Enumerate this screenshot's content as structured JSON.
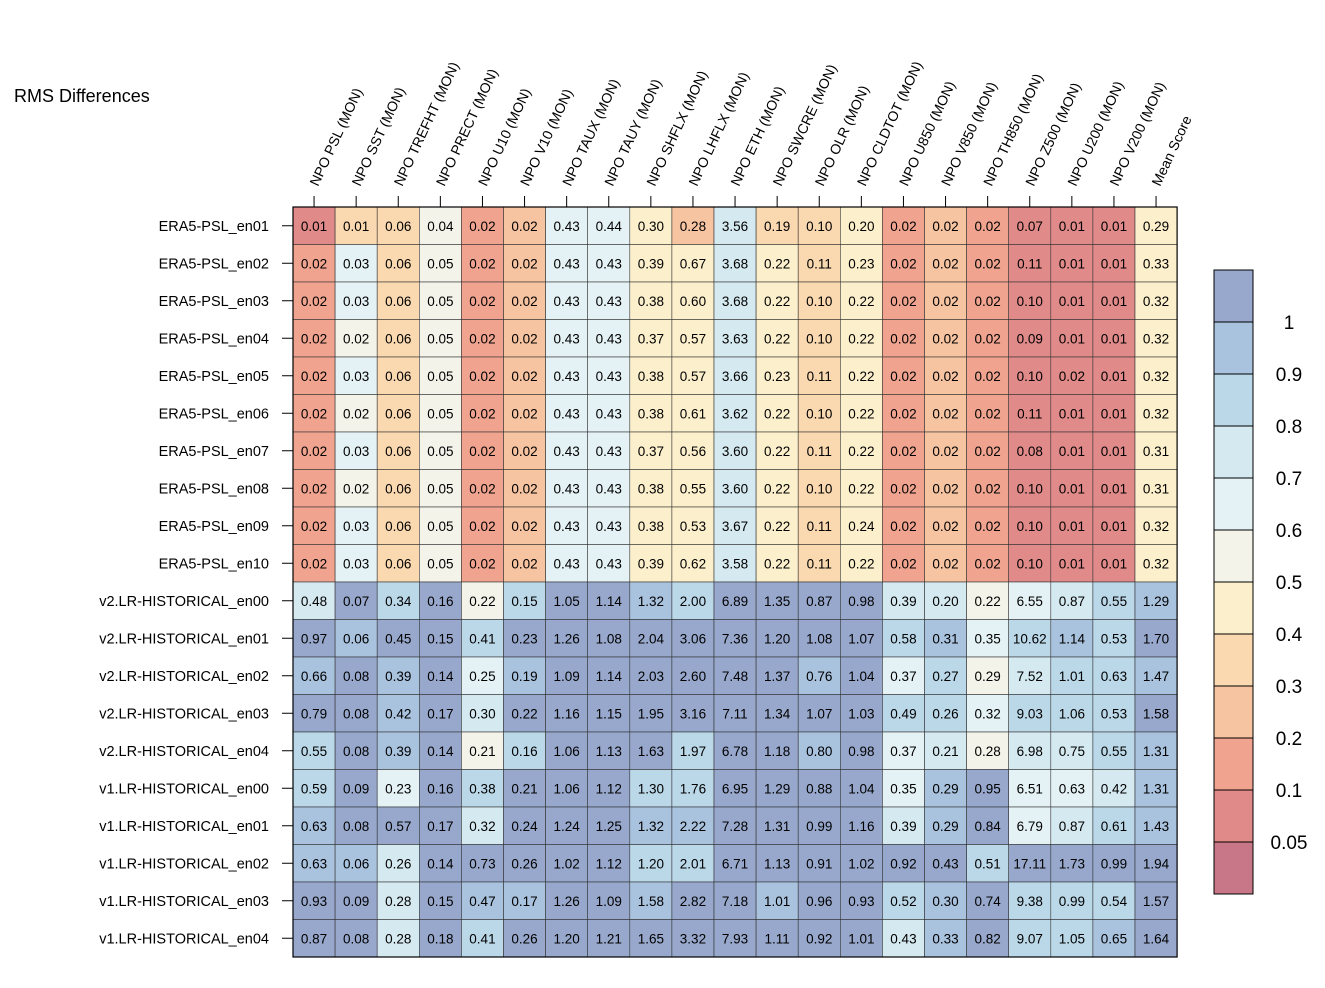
{
  "chart_data": {
    "type": "heatmap",
    "title": "RMS Differences",
    "columns": [
      "NPO PSL (MON)",
      "NPO SST (MON)",
      "NPO TREFHT (MON)",
      "NPO PRECT (MON)",
      "NPO U10 (MON)",
      "NPO V10 (MON)",
      "NPO TAUX (MON)",
      "NPO TAUY (MON)",
      "NPO SHFLX (MON)",
      "NPO LHFLX (MON)",
      "NPO ETH (MON)",
      "NPO SWCRE (MON)",
      "NPO OLR (MON)",
      "NPO CLDTOT (MON)",
      "NPO U850 (MON)",
      "NPO V850 (MON)",
      "NPO TH850 (MON)",
      "NPO Z500 (MON)",
      "NPO U200 (MON)",
      "NPO V200 (MON)",
      "Mean Score"
    ],
    "rows": [
      "ERA5-PSL_en01",
      "ERA5-PSL_en02",
      "ERA5-PSL_en03",
      "ERA5-PSL_en04",
      "ERA5-PSL_en05",
      "ERA5-PSL_en06",
      "ERA5-PSL_en07",
      "ERA5-PSL_en08",
      "ERA5-PSL_en09",
      "ERA5-PSL_en10",
      "v2.LR-HISTORICAL_en00",
      "v2.LR-HISTORICAL_en01",
      "v2.LR-HISTORICAL_en02",
      "v2.LR-HISTORICAL_en03",
      "v2.LR-HISTORICAL_en04",
      "v1.LR-HISTORICAL_en00",
      "v1.LR-HISTORICAL_en01",
      "v1.LR-HISTORICAL_en02",
      "v1.LR-HISTORICAL_en03",
      "v1.LR-HISTORICAL_en04"
    ],
    "values": [
      [
        "0.01",
        "0.01",
        "0.06",
        "0.04",
        "0.02",
        "0.02",
        "0.43",
        "0.44",
        "0.30",
        "0.28",
        "3.56",
        "0.19",
        "0.10",
        "0.20",
        "0.02",
        "0.02",
        "0.02",
        "0.07",
        "0.01",
        "0.01",
        "0.29"
      ],
      [
        "0.02",
        "0.03",
        "0.06",
        "0.05",
        "0.02",
        "0.02",
        "0.43",
        "0.43",
        "0.39",
        "0.67",
        "3.68",
        "0.22",
        "0.11",
        "0.23",
        "0.02",
        "0.02",
        "0.02",
        "0.11",
        "0.01",
        "0.01",
        "0.33"
      ],
      [
        "0.02",
        "0.03",
        "0.06",
        "0.05",
        "0.02",
        "0.02",
        "0.43",
        "0.43",
        "0.38",
        "0.60",
        "3.68",
        "0.22",
        "0.10",
        "0.22",
        "0.02",
        "0.02",
        "0.02",
        "0.10",
        "0.01",
        "0.01",
        "0.32"
      ],
      [
        "0.02",
        "0.02",
        "0.06",
        "0.05",
        "0.02",
        "0.02",
        "0.43",
        "0.43",
        "0.37",
        "0.57",
        "3.63",
        "0.22",
        "0.10",
        "0.22",
        "0.02",
        "0.02",
        "0.02",
        "0.09",
        "0.01",
        "0.01",
        "0.32"
      ],
      [
        "0.02",
        "0.03",
        "0.06",
        "0.05",
        "0.02",
        "0.02",
        "0.43",
        "0.43",
        "0.38",
        "0.57",
        "3.66",
        "0.23",
        "0.11",
        "0.22",
        "0.02",
        "0.02",
        "0.02",
        "0.10",
        "0.02",
        "0.01",
        "0.32"
      ],
      [
        "0.02",
        "0.02",
        "0.06",
        "0.05",
        "0.02",
        "0.02",
        "0.43",
        "0.43",
        "0.38",
        "0.61",
        "3.62",
        "0.22",
        "0.10",
        "0.22",
        "0.02",
        "0.02",
        "0.02",
        "0.11",
        "0.01",
        "0.01",
        "0.32"
      ],
      [
        "0.02",
        "0.03",
        "0.06",
        "0.05",
        "0.02",
        "0.02",
        "0.43",
        "0.43",
        "0.37",
        "0.56",
        "3.60",
        "0.22",
        "0.11",
        "0.22",
        "0.02",
        "0.02",
        "0.02",
        "0.08",
        "0.01",
        "0.01",
        "0.31"
      ],
      [
        "0.02",
        "0.02",
        "0.06",
        "0.05",
        "0.02",
        "0.02",
        "0.43",
        "0.43",
        "0.38",
        "0.55",
        "3.60",
        "0.22",
        "0.10",
        "0.22",
        "0.02",
        "0.02",
        "0.02",
        "0.10",
        "0.01",
        "0.01",
        "0.31"
      ],
      [
        "0.02",
        "0.03",
        "0.06",
        "0.05",
        "0.02",
        "0.02",
        "0.43",
        "0.43",
        "0.38",
        "0.53",
        "3.67",
        "0.22",
        "0.11",
        "0.24",
        "0.02",
        "0.02",
        "0.02",
        "0.10",
        "0.01",
        "0.01",
        "0.32"
      ],
      [
        "0.02",
        "0.03",
        "0.06",
        "0.05",
        "0.02",
        "0.02",
        "0.43",
        "0.43",
        "0.39",
        "0.62",
        "3.58",
        "0.22",
        "0.11",
        "0.22",
        "0.02",
        "0.02",
        "0.02",
        "0.10",
        "0.01",
        "0.01",
        "0.32"
      ],
      [
        "0.48",
        "0.07",
        "0.34",
        "0.16",
        "0.22",
        "0.15",
        "1.05",
        "1.14",
        "1.32",
        "2.00",
        "6.89",
        "1.35",
        "0.87",
        "0.98",
        "0.39",
        "0.20",
        "0.22",
        "6.55",
        "0.87",
        "0.55",
        "1.29"
      ],
      [
        "0.97",
        "0.06",
        "0.45",
        "0.15",
        "0.41",
        "0.23",
        "1.26",
        "1.08",
        "2.04",
        "3.06",
        "7.36",
        "1.20",
        "1.08",
        "1.07",
        "0.58",
        "0.31",
        "0.35",
        "10.62",
        "1.14",
        "0.53",
        "1.70"
      ],
      [
        "0.66",
        "0.08",
        "0.39",
        "0.14",
        "0.25",
        "0.19",
        "1.09",
        "1.14",
        "2.03",
        "2.60",
        "7.48",
        "1.37",
        "0.76",
        "1.04",
        "0.37",
        "0.27",
        "0.29",
        "7.52",
        "1.01",
        "0.63",
        "1.47"
      ],
      [
        "0.79",
        "0.08",
        "0.42",
        "0.17",
        "0.30",
        "0.22",
        "1.16",
        "1.15",
        "1.95",
        "3.16",
        "7.11",
        "1.34",
        "1.07",
        "1.03",
        "0.49",
        "0.26",
        "0.32",
        "9.03",
        "1.06",
        "0.53",
        "1.58"
      ],
      [
        "0.55",
        "0.08",
        "0.39",
        "0.14",
        "0.21",
        "0.16",
        "1.06",
        "1.13",
        "1.63",
        "1.97",
        "6.78",
        "1.18",
        "0.80",
        "0.98",
        "0.37",
        "0.21",
        "0.28",
        "6.98",
        "0.75",
        "0.55",
        "1.31"
      ],
      [
        "0.59",
        "0.09",
        "0.23",
        "0.16",
        "0.38",
        "0.21",
        "1.06",
        "1.12",
        "1.30",
        "1.76",
        "6.95",
        "1.29",
        "0.88",
        "1.04",
        "0.35",
        "0.29",
        "0.95",
        "6.51",
        "0.63",
        "0.42",
        "1.31"
      ],
      [
        "0.63",
        "0.08",
        "0.57",
        "0.17",
        "0.32",
        "0.24",
        "1.24",
        "1.25",
        "1.32",
        "2.22",
        "7.28",
        "1.31",
        "0.99",
        "1.16",
        "0.39",
        "0.29",
        "0.84",
        "6.79",
        "0.87",
        "0.61",
        "1.43"
      ],
      [
        "0.63",
        "0.06",
        "0.26",
        "0.14",
        "0.73",
        "0.26",
        "1.02",
        "1.12",
        "1.20",
        "2.01",
        "6.71",
        "1.13",
        "0.91",
        "1.02",
        "0.92",
        "0.43",
        "0.51",
        "17.11",
        "1.73",
        "0.99",
        "1.94"
      ],
      [
        "0.93",
        "0.09",
        "0.28",
        "0.15",
        "0.47",
        "0.17",
        "1.26",
        "1.09",
        "1.58",
        "2.82",
        "7.18",
        "1.01",
        "0.96",
        "0.93",
        "0.52",
        "0.30",
        "0.74",
        "9.38",
        "0.99",
        "0.54",
        "1.57"
      ],
      [
        "0.87",
        "0.08",
        "0.28",
        "0.18",
        "0.41",
        "0.26",
        "1.20",
        "1.21",
        "1.65",
        "3.32",
        "7.93",
        "1.11",
        "0.92",
        "1.01",
        "0.43",
        "0.33",
        "0.82",
        "9.07",
        "1.05",
        "0.65",
        "1.64"
      ]
    ],
    "colorbar": {
      "labels": [
        "1",
        "0.9",
        "0.8",
        "0.7",
        "0.6",
        "0.5",
        "0.4",
        "0.3",
        "0.2",
        "0.1",
        "0.05"
      ],
      "colors": [
        "#97A8CC",
        "#A9C2DE",
        "#BBD8E9",
        "#D5E9F0",
        "#E5F2F5",
        "#F3F3EA",
        "#FCEFCB",
        "#FAD8B0",
        "#F7C4A2",
        "#F0A48F",
        "#E08A89",
        "#C87788"
      ]
    }
  }
}
